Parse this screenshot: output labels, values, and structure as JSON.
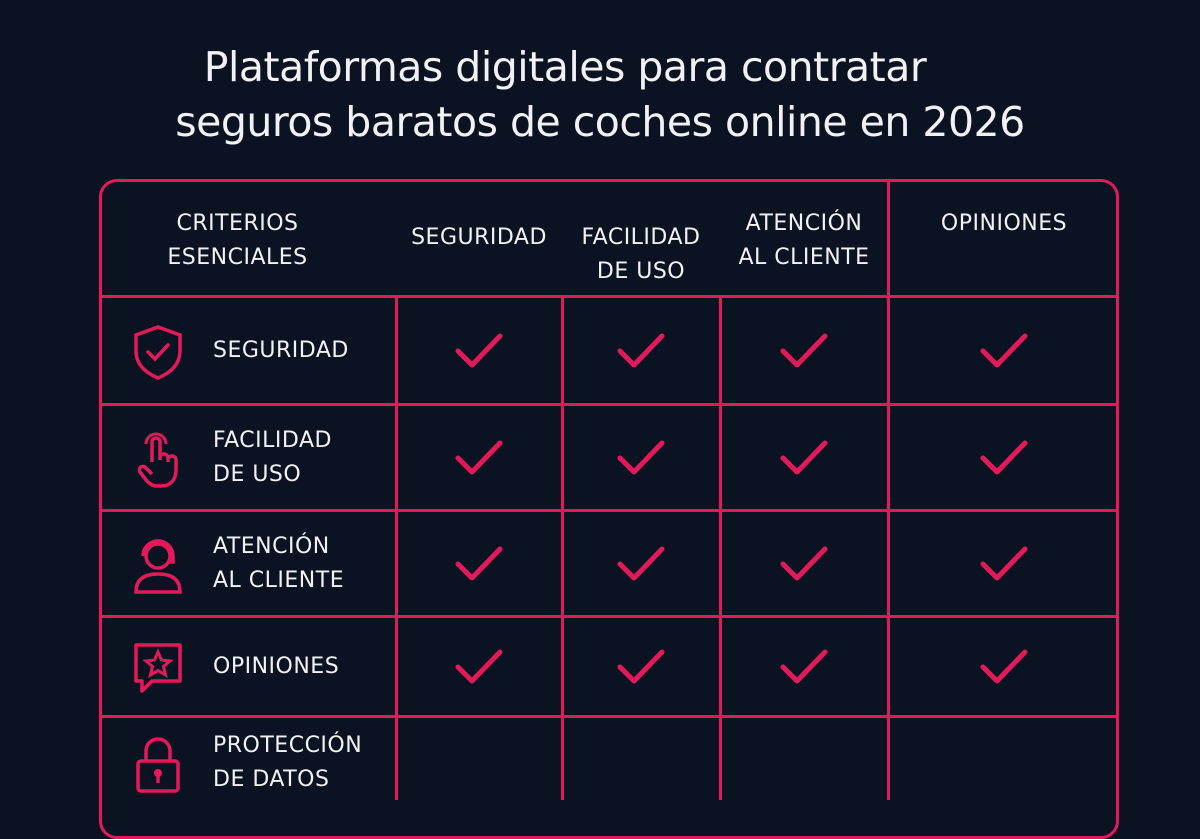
{
  "title": [
    "Plataformas digitales para contratar",
    "seguros baratos de coches online en 2026"
  ],
  "colors": {
    "accent": "#e3195a",
    "background": "#0b1323",
    "text": "#f2f2f4"
  },
  "header": {
    "criteria": [
      "CRITERIOS",
      "ESENCIALES"
    ],
    "columns": [
      [
        "SEGURIDAD"
      ],
      [
        "FACILIDAD",
        "DE USO"
      ],
      [
        "ATENCIÓN",
        "AL CLIENTE"
      ],
      [
        "OPINIONES"
      ]
    ]
  },
  "rows": [
    {
      "label": [
        "SEGURIDAD"
      ],
      "icon": "shield-check-icon",
      "checks": [
        true,
        true,
        true,
        true
      ]
    },
    {
      "label": [
        "FACILIDAD",
        "DE USO"
      ],
      "icon": "pointer-hand-icon",
      "checks": [
        true,
        true,
        true,
        true
      ]
    },
    {
      "label": [
        "ATENCIÓN",
        "AL CLIENTE"
      ],
      "icon": "headset-agent-icon",
      "checks": [
        true,
        true,
        true,
        true
      ]
    },
    {
      "label": [
        "OPINIONES"
      ],
      "icon": "star-speech-bubble-icon",
      "checks": [
        true,
        true,
        true,
        true
      ]
    },
    {
      "label": [
        "PROTECCIÓN",
        "DE DATOS"
      ],
      "icon": "padlock-icon",
      "checks": [
        false,
        false,
        false,
        false
      ]
    }
  ]
}
